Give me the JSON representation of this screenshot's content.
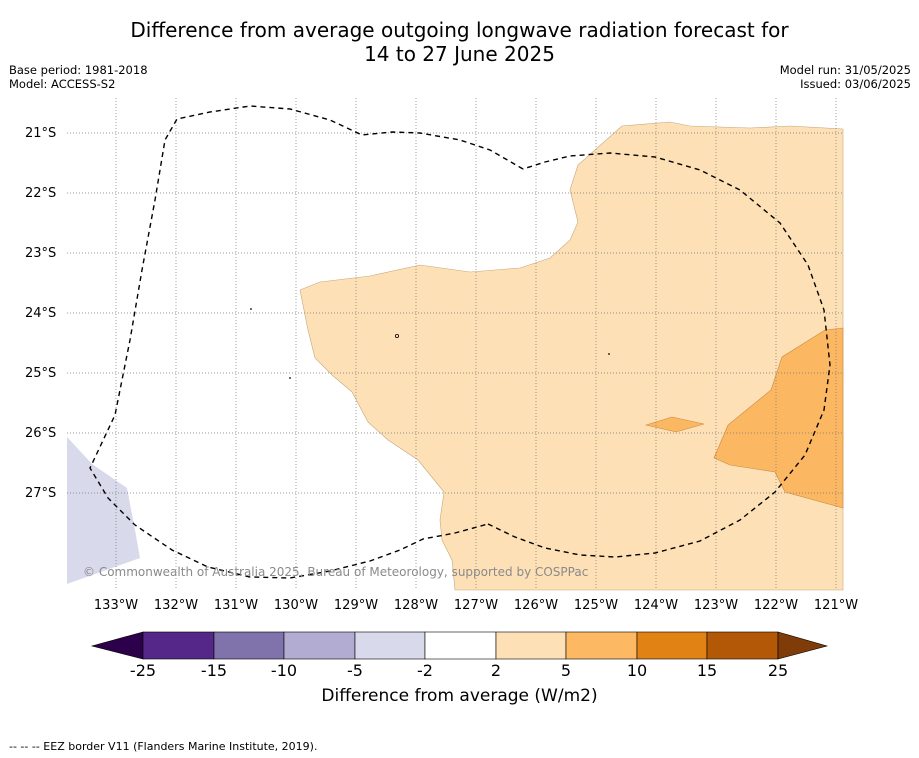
{
  "header": {
    "title_line1": "Difference from average outgoing longwave radiation forecast for",
    "title_line2": "14 to 27 June 2025",
    "base_period": "Base period: 1981-2018",
    "model": "Model: ACCESS-S2",
    "model_run": "Model run: 31/05/2025",
    "issued": "Issued: 03/06/2025"
  },
  "map": {
    "lat_labels": [
      "21°S",
      "22°S",
      "23°S",
      "24°S",
      "25°S",
      "26°S",
      "27°S"
    ],
    "lon_labels": [
      "133°W",
      "132°W",
      "131°W",
      "130°W",
      "129°W",
      "128°W",
      "127°W",
      "126°W",
      "125°W",
      "124°W",
      "123°W",
      "122°W",
      "121°W"
    ],
    "credit": "© Commonwealth of Australia 2025, Bureau of Meteorology, supported by COSPPac",
    "regions": [
      {
        "name": "positive-2-to-5",
        "color": "#fde0b6"
      },
      {
        "name": "positive-5-to-10",
        "color": "#fbb761"
      },
      {
        "name": "negative-5-to-2",
        "color": "#d8d9ea"
      }
    ]
  },
  "colorbar": {
    "ticks": [
      "-25",
      "-15",
      "-10",
      "-5",
      "-2",
      "2",
      "5",
      "10",
      "15",
      "25"
    ],
    "colors": [
      "#2d004b",
      "#542788",
      "#8073ac",
      "#b2abd2",
      "#d8daeb",
      "#ffffff",
      "#fee0b6",
      "#fdb863",
      "#e08214",
      "#b35806",
      "#7f3b08"
    ],
    "label": "Difference from average (W/m2)"
  },
  "footnote": "--  --  -- EEZ border V11 (Flanders Marine Institute, 2019)."
}
